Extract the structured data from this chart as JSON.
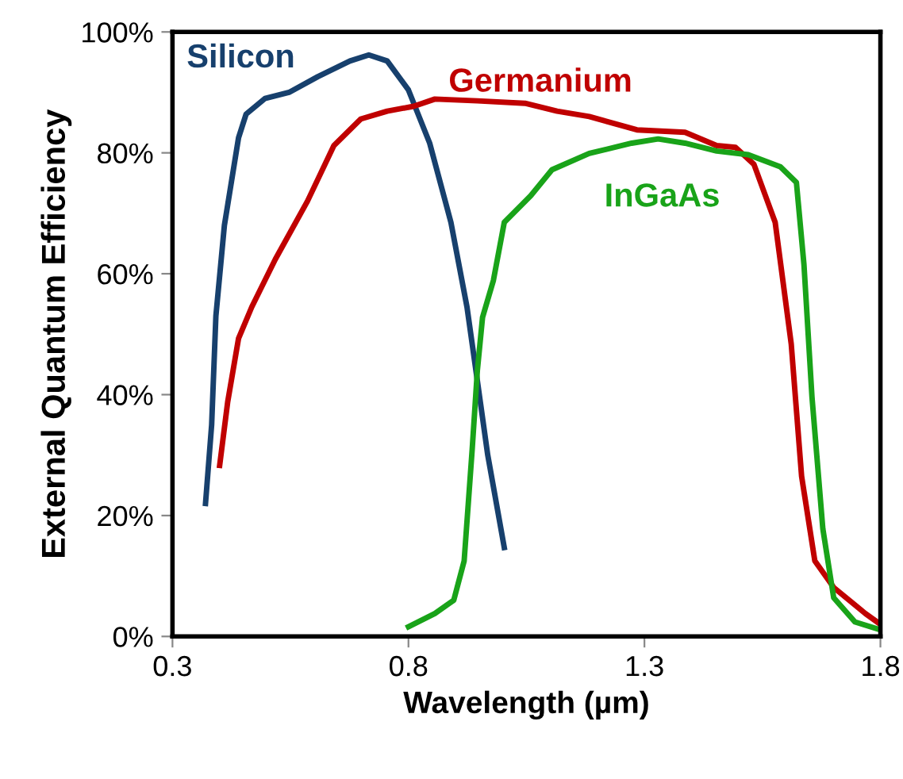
{
  "chart_data": {
    "type": "line",
    "xlabel": "Wavelength (µm)",
    "ylabel": "External Quantum Efficiency",
    "xlim": [
      0.3,
      1.8
    ],
    "ylim": [
      0,
      100
    ],
    "xticks": [
      0.3,
      0.8,
      1.3,
      1.8
    ],
    "yticks": [
      {
        "value": 0,
        "label": "0%"
      },
      {
        "value": 20,
        "label": "20%"
      },
      {
        "value": 40,
        "label": "40%"
      },
      {
        "value": 60,
        "label": "60%"
      },
      {
        "value": 80,
        "label": "80%"
      },
      {
        "value": 100,
        "label": "100%"
      }
    ],
    "grid": false,
    "legend": false,
    "marker": "none",
    "line_style": "solid",
    "series": [
      {
        "name": "Silicon",
        "color": "#17406d",
        "x": [
          0.37,
          0.383,
          0.392,
          0.41,
          0.44,
          0.456,
          0.496,
          0.547,
          0.608,
          0.676,
          0.716,
          0.755,
          0.8,
          0.845,
          0.89,
          0.924,
          0.946,
          0.968,
          1.003
        ],
        "values": [
          22,
          35,
          53,
          68,
          82.5,
          86.4,
          89,
          90,
          92.6,
          95.2,
          96.2,
          95.2,
          90.4,
          81.6,
          68.5,
          54.5,
          42.3,
          30,
          14.7
        ]
      },
      {
        "name": "Germanium",
        "color": "#c00000",
        "x": [
          0.4,
          0.417,
          0.44,
          0.468,
          0.518,
          0.586,
          0.642,
          0.699,
          0.755,
          0.811,
          0.856,
          0.946,
          1.047,
          1.115,
          1.183,
          1.284,
          1.386,
          1.453,
          1.493,
          1.532,
          1.577,
          1.611,
          1.633,
          1.661,
          1.701,
          1.768,
          1.8
        ],
        "values": [
          28.3,
          38.8,
          49.3,
          54.5,
          62.4,
          72,
          81.2,
          85.6,
          86.9,
          87.7,
          88.9,
          88.6,
          88.2,
          86.9,
          86,
          83.8,
          83.4,
          81.2,
          80.9,
          78.1,
          68.5,
          48.4,
          26.5,
          12.5,
          8.1,
          3.8,
          2
        ]
      },
      {
        "name": "InGaAs",
        "color": "#19a319",
        "x": [
          0.8,
          0.856,
          0.896,
          0.918,
          0.935,
          0.946,
          0.957,
          0.98,
          1.003,
          1.059,
          1.104,
          1.183,
          1.273,
          1.329,
          1.386,
          1.453,
          1.52,
          1.588,
          1.622,
          1.638,
          1.655,
          1.678,
          1.701,
          1.746,
          1.8
        ],
        "values": [
          1.6,
          3.8,
          6,
          12.5,
          30.9,
          44,
          52.8,
          58.9,
          68.5,
          72.9,
          77.2,
          79.9,
          81.6,
          82.3,
          81.6,
          80.3,
          79.7,
          77.7,
          75.1,
          61.5,
          39.6,
          17.8,
          6.4,
          2.4,
          1.1
        ]
      }
    ]
  }
}
